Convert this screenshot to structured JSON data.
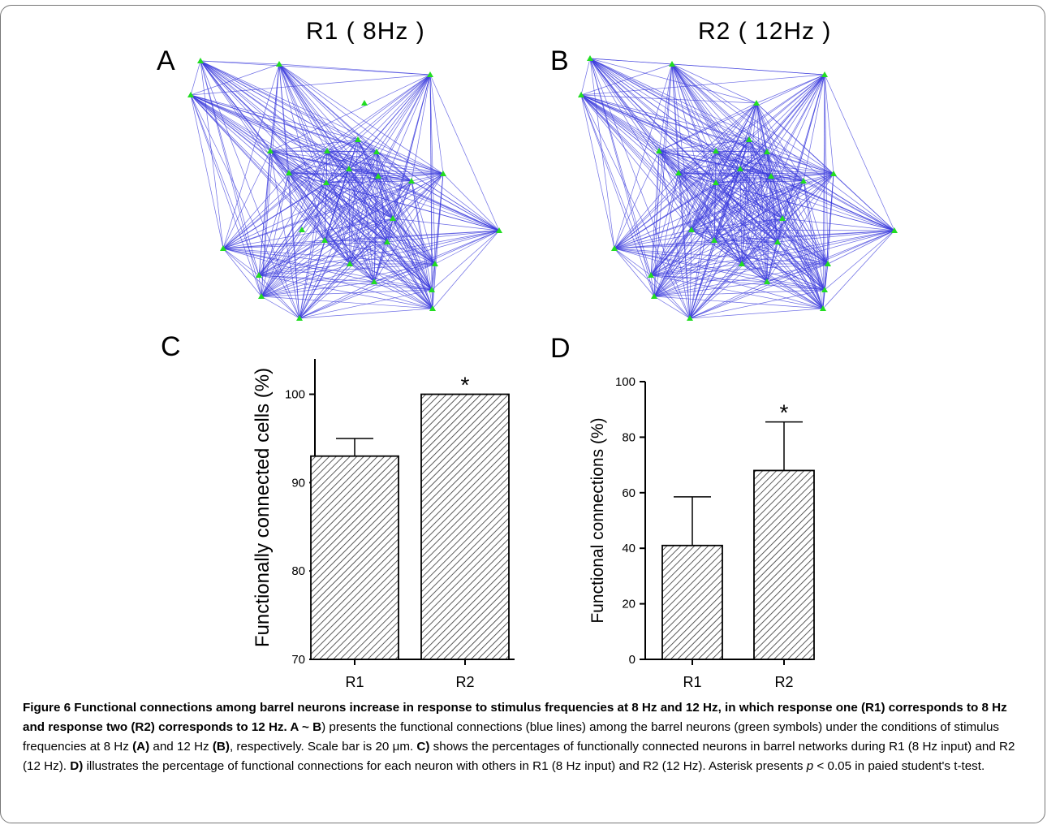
{
  "panels": {
    "A": {
      "letter": "A",
      "title": "R1 ( 8Hz )"
    },
    "B": {
      "letter": "B",
      "title": "R2 ( 12Hz )"
    },
    "C": {
      "letter": "C"
    },
    "D": {
      "letter": "D"
    }
  },
  "colors": {
    "edges": "#3b3bdc",
    "nodes": "#22dd22",
    "bars": "#ffffff",
    "hatch": "#333333"
  },
  "network_nodes": {
    "A": [
      [
        247,
        75
      ],
      [
        344,
        79
      ],
      [
        235,
        117
      ],
      [
        449,
        127
      ],
      [
        530,
        92
      ],
      [
        441,
        172
      ],
      [
        333,
        186
      ],
      [
        403,
        186
      ],
      [
        464,
        187
      ],
      [
        356,
        213
      ],
      [
        430,
        208
      ],
      [
        466,
        217
      ],
      [
        507,
        223
      ],
      [
        546,
        214
      ],
      [
        402,
        225
      ],
      [
        372,
        283
      ],
      [
        484,
        269
      ],
      [
        400,
        296
      ],
      [
        477,
        298
      ],
      [
        275,
        306
      ],
      [
        319,
        339
      ],
      [
        431,
        325
      ],
      [
        536,
        325
      ],
      [
        615,
        284
      ],
      [
        461,
        347
      ],
      [
        532,
        357
      ],
      [
        322,
        365
      ],
      [
        369,
        392
      ],
      [
        533,
        380
      ]
    ],
    "B": [
      [
        727,
        72
      ],
      [
        828,
        79
      ],
      [
        716,
        117
      ],
      [
        932,
        127
      ],
      [
        1016,
        92
      ],
      [
        923,
        172
      ],
      [
        812,
        186
      ],
      [
        882,
        186
      ],
      [
        945,
        187
      ],
      [
        836,
        213
      ],
      [
        912,
        208
      ],
      [
        950,
        217
      ],
      [
        990,
        223
      ],
      [
        1027,
        214
      ],
      [
        882,
        225
      ],
      [
        852,
        283
      ],
      [
        964,
        269
      ],
      [
        880,
        296
      ],
      [
        958,
        298
      ],
      [
        757,
        306
      ],
      [
        802,
        339
      ],
      [
        914,
        325
      ],
      [
        1020,
        325
      ],
      [
        1102,
        284
      ],
      [
        945,
        347
      ],
      [
        1016,
        357
      ],
      [
        806,
        365
      ],
      [
        850,
        392
      ],
      [
        1014,
        380
      ]
    ]
  },
  "isolated_nodes": {
    "A": [
      0,
      0,
      0,
      1,
      0,
      0,
      0,
      0,
      0,
      0,
      0,
      0,
      0,
      0,
      0,
      1,
      0,
      0,
      0,
      0,
      0,
      0,
      0,
      0,
      0,
      0,
      0,
      0,
      0
    ],
    "B": []
  },
  "chart_data": [
    {
      "panel": "C",
      "type": "bar",
      "categories": [
        "R1",
        "R2"
      ],
      "values": [
        93,
        100
      ],
      "error": [
        2,
        0
      ],
      "significance": [
        "",
        "*"
      ],
      "ylabel": "Functionally connected cells (%)",
      "xlabel": "",
      "title": "",
      "ylim": [
        70,
        104
      ],
      "yticks": [
        70,
        80,
        90,
        100
      ],
      "grid": false
    },
    {
      "panel": "D",
      "type": "bar",
      "categories": [
        "R1",
        "R2"
      ],
      "values": [
        41,
        68
      ],
      "error": [
        17.5,
        17.5
      ],
      "significance": [
        "",
        "*"
      ],
      "ylabel": "Functional connections (%)",
      "xlabel": "",
      "title": "",
      "ylim": [
        0,
        100
      ],
      "yticks": [
        0,
        20,
        40,
        60,
        80,
        100
      ],
      "grid": false
    }
  ],
  "caption": {
    "lead": "Figure 6 Functional connections among barrel neurons increase in response to stimulus frequencies at 8 Hz and 12 Hz, in which response one (R1) corresponds to 8 Hz and response two (R2) corresponds to 12 Hz. A ~ B",
    "p1": ") presents the functional connections (blue lines) among the barrel neurons (green symbols) under the conditions of stimulus frequencies at 8 Hz ",
    "refA": "(A)",
    "p2": " and 12 Hz ",
    "refB": "(B)",
    "p3": ", respectively. Scale bar is 20 μm. ",
    "refC": "C)",
    "p4": " shows the percentages of functionally connected neurons in barrel networks during R1 (8 Hz input) and R2 (12 Hz). ",
    "refD": "D)",
    "p5": " illustrates the percentage of functional connections for each neuron with others in R1 (8 Hz input) and R2 (12 Hz). Asterisk presents ",
    "p_italic": "p",
    "p6": " < 0.05 in paied student's t-test."
  }
}
